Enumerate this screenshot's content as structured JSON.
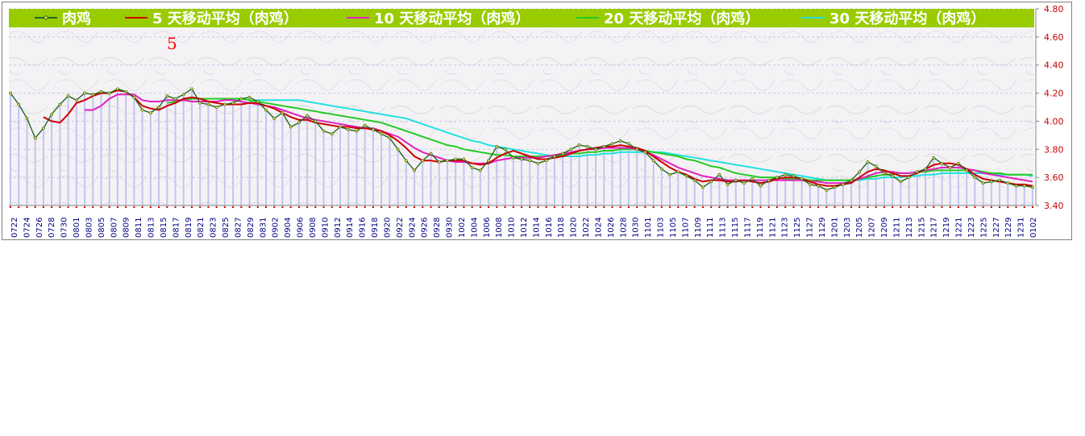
{
  "chart_data": {
    "type": "line",
    "title": "",
    "xlabel": "",
    "ylabel": "",
    "ylim": [
      3.4,
      4.8
    ],
    "y_ticks": [
      "4.80",
      "4.60",
      "4.40",
      "4.20",
      "4.00",
      "3.80",
      "3.60",
      "3.40"
    ],
    "annotation": "5",
    "x_tick_labels": [
      "0722",
      "0724",
      "0726",
      "0728",
      "0730",
      "0801",
      "0803",
      "0805",
      "0807",
      "0809",
      "0811",
      "0813",
      "0815",
      "0817",
      "0819",
      "0821",
      "0823",
      "0825",
      "0827",
      "0829",
      "0831",
      "0902",
      "0904",
      "0906",
      "0908",
      "0910",
      "0912",
      "0914",
      "0916",
      "0918",
      "0920",
      "0922",
      "0924",
      "0926",
      "0928",
      "0930",
      "1002",
      "1004",
      "1006",
      "1008",
      "1010",
      "1012",
      "1014",
      "1016",
      "1018",
      "1020",
      "1022",
      "1024",
      "1026",
      "1028",
      "1030",
      "1101",
      "1103",
      "1105",
      "1107",
      "1109",
      "1111",
      "1113",
      "1115",
      "1117",
      "1119",
      "1121",
      "1123",
      "1125",
      "1127",
      "1129",
      "1201",
      "1203",
      "1205",
      "1207",
      "1209",
      "1211",
      "1213",
      "1215",
      "1217",
      "1219",
      "1221",
      "1223",
      "1225",
      "1227",
      "1229",
      "1231",
      "0102"
    ],
    "grid": true,
    "legend_position": "top",
    "colors": {
      "legend_bg": "#99cc00",
      "legend_text": "#ffffff",
      "axis_text": "#cc0000",
      "bars": "#c4c4f4",
      "annotation": "#ff0000"
    },
    "series": [
      {
        "name": "肉鸡",
        "color": "#226622",
        "values": [
          4.2,
          4.12,
          4.02,
          3.88,
          3.95,
          4.05,
          4.12,
          4.18,
          4.15,
          4.2,
          4.19,
          4.21,
          4.2,
          4.23,
          4.21,
          4.17,
          4.08,
          4.06,
          4.1,
          4.18,
          4.16,
          4.19,
          4.23,
          4.13,
          4.12,
          4.1,
          4.12,
          4.13,
          4.16,
          4.17,
          4.14,
          4.08,
          4.02,
          4.06,
          3.96,
          3.99,
          4.04,
          4.0,
          3.93,
          3.91,
          3.96,
          3.94,
          3.93,
          3.97,
          3.94,
          3.91,
          3.88,
          3.8,
          3.72,
          3.65,
          3.72,
          3.77,
          3.71,
          3.72,
          3.73,
          3.73,
          3.67,
          3.65,
          3.72,
          3.82,
          3.8,
          3.74,
          3.73,
          3.72,
          3.7,
          3.72,
          3.75,
          3.77,
          3.8,
          3.83,
          3.82,
          3.8,
          3.82,
          3.84,
          3.86,
          3.84,
          3.8,
          3.78,
          3.72,
          3.66,
          3.62,
          3.64,
          3.61,
          3.58,
          3.53,
          3.57,
          3.62,
          3.55,
          3.58,
          3.56,
          3.59,
          3.54,
          3.58,
          3.6,
          3.62,
          3.61,
          3.59,
          3.55,
          3.54,
          3.51,
          3.53,
          3.55,
          3.58,
          3.64,
          3.71,
          3.68,
          3.63,
          3.61,
          3.57,
          3.6,
          3.64,
          3.66,
          3.74,
          3.7,
          3.67,
          3.7,
          3.65,
          3.6,
          3.56,
          3.57,
          3.58,
          3.56,
          3.54,
          3.54,
          3.53
        ]
      },
      {
        "name": "5 天移动平均（肉鸡）",
        "color": "#cc0000",
        "values": [
          null,
          null,
          null,
          null,
          4.03,
          4.0,
          3.99,
          4.05,
          4.13,
          4.15,
          4.18,
          4.2,
          4.2,
          4.22,
          4.21,
          4.17,
          4.11,
          4.09,
          4.08,
          4.11,
          4.13,
          4.16,
          4.17,
          4.16,
          4.14,
          4.13,
          4.12,
          4.12,
          4.12,
          4.13,
          4.13,
          4.11,
          4.09,
          4.06,
          4.03,
          4.01,
          4.01,
          3.99,
          3.98,
          3.97,
          3.96,
          3.96,
          3.95,
          3.95,
          3.94,
          3.93,
          3.9,
          3.86,
          3.81,
          3.75,
          3.72,
          3.72,
          3.71,
          3.72,
          3.72,
          3.72,
          3.7,
          3.69,
          3.7,
          3.74,
          3.77,
          3.79,
          3.77,
          3.75,
          3.73,
          3.73,
          3.74,
          3.75,
          3.77,
          3.79,
          3.8,
          3.81,
          3.82,
          3.82,
          3.83,
          3.82,
          3.81,
          3.79,
          3.75,
          3.71,
          3.67,
          3.64,
          3.62,
          3.59,
          3.57,
          3.58,
          3.58,
          3.57,
          3.57,
          3.58,
          3.57,
          3.56,
          3.57,
          3.59,
          3.6,
          3.6,
          3.59,
          3.57,
          3.55,
          3.54,
          3.54,
          3.55,
          3.56,
          3.6,
          3.64,
          3.66,
          3.65,
          3.63,
          3.61,
          3.61,
          3.63,
          3.66,
          3.69,
          3.7,
          3.7,
          3.69,
          3.66,
          3.62,
          3.59,
          3.58,
          3.57,
          3.56,
          3.55,
          3.55,
          3.54
        ]
      },
      {
        "name": "10 天移动平均（肉鸡）",
        "color": "#e020c0",
        "values": [
          null,
          null,
          null,
          null,
          null,
          null,
          null,
          null,
          null,
          4.08,
          4.08,
          4.11,
          4.16,
          4.19,
          4.19,
          4.19,
          4.15,
          4.14,
          4.14,
          4.15,
          4.15,
          4.15,
          4.14,
          4.14,
          4.14,
          4.14,
          4.15,
          4.15,
          4.14,
          4.13,
          4.12,
          4.11,
          4.1,
          4.08,
          4.06,
          4.04,
          4.02,
          4.01,
          4.0,
          3.99,
          3.98,
          3.97,
          3.96,
          3.95,
          3.95,
          3.93,
          3.91,
          3.89,
          3.85,
          3.81,
          3.78,
          3.76,
          3.74,
          3.72,
          3.71,
          3.71,
          3.7,
          3.7,
          3.7,
          3.72,
          3.73,
          3.74,
          3.74,
          3.74,
          3.74,
          3.75,
          3.76,
          3.77,
          3.78,
          3.79,
          3.8,
          3.8,
          3.81,
          3.81,
          3.81,
          3.81,
          3.8,
          3.78,
          3.76,
          3.73,
          3.7,
          3.67,
          3.65,
          3.63,
          3.61,
          3.6,
          3.59,
          3.58,
          3.58,
          3.58,
          3.58,
          3.58,
          3.58,
          3.58,
          3.58,
          3.58,
          3.58,
          3.57,
          3.57,
          3.56,
          3.56,
          3.56,
          3.57,
          3.59,
          3.61,
          3.63,
          3.64,
          3.64,
          3.63,
          3.63,
          3.64,
          3.65,
          3.66,
          3.67,
          3.67,
          3.67,
          3.66,
          3.65,
          3.63,
          3.62,
          3.61,
          3.6,
          3.59,
          3.58,
          3.57
        ]
      },
      {
        "name": "20 天移动平均（肉鸡）",
        "color": "#22cc22",
        "values": [
          null,
          null,
          null,
          null,
          null,
          null,
          null,
          null,
          null,
          null,
          null,
          null,
          null,
          null,
          null,
          null,
          null,
          null,
          null,
          4.13,
          4.14,
          4.15,
          4.16,
          4.16,
          4.16,
          4.16,
          4.16,
          4.16,
          4.16,
          4.15,
          4.14,
          4.13,
          4.12,
          4.11,
          4.1,
          4.09,
          4.08,
          4.07,
          4.06,
          4.05,
          4.04,
          4.03,
          4.02,
          4.01,
          4.0,
          3.99,
          3.97,
          3.95,
          3.93,
          3.91,
          3.89,
          3.87,
          3.85,
          3.83,
          3.82,
          3.8,
          3.79,
          3.78,
          3.77,
          3.76,
          3.76,
          3.75,
          3.75,
          3.75,
          3.75,
          3.75,
          3.75,
          3.76,
          3.77,
          3.77,
          3.78,
          3.78,
          3.79,
          3.79,
          3.8,
          3.8,
          3.8,
          3.79,
          3.78,
          3.77,
          3.76,
          3.75,
          3.73,
          3.72,
          3.7,
          3.68,
          3.67,
          3.65,
          3.63,
          3.62,
          3.61,
          3.6,
          3.6,
          3.6,
          3.59,
          3.59,
          3.59,
          3.58,
          3.58,
          3.58,
          3.58,
          3.58,
          3.58,
          3.59,
          3.6,
          3.61,
          3.62,
          3.62,
          3.63,
          3.63,
          3.64,
          3.64,
          3.65,
          3.65,
          3.65,
          3.65,
          3.65,
          3.65,
          3.64,
          3.63,
          3.63,
          3.62,
          3.62,
          3.62,
          3.62
        ]
      },
      {
        "name": "30 天移动平均（肉鸡）",
        "color": "#22e0e0",
        "values": [
          null,
          null,
          null,
          null,
          null,
          null,
          null,
          null,
          null,
          null,
          null,
          null,
          null,
          null,
          null,
          null,
          null,
          null,
          null,
          null,
          null,
          null,
          null,
          null,
          null,
          null,
          null,
          null,
          null,
          4.14,
          4.15,
          4.15,
          4.15,
          4.15,
          4.15,
          4.15,
          4.14,
          4.13,
          4.12,
          4.11,
          4.1,
          4.09,
          4.08,
          4.07,
          4.06,
          4.05,
          4.04,
          4.03,
          4.02,
          4.0,
          3.98,
          3.96,
          3.94,
          3.92,
          3.9,
          3.88,
          3.86,
          3.85,
          3.83,
          3.82,
          3.81,
          3.8,
          3.79,
          3.78,
          3.77,
          3.76,
          3.75,
          3.75,
          3.75,
          3.75,
          3.76,
          3.76,
          3.77,
          3.77,
          3.78,
          3.78,
          3.78,
          3.78,
          3.78,
          3.78,
          3.77,
          3.76,
          3.75,
          3.74,
          3.73,
          3.72,
          3.71,
          3.7,
          3.69,
          3.68,
          3.67,
          3.66,
          3.65,
          3.64,
          3.63,
          3.62,
          3.61,
          3.6,
          3.59,
          3.58,
          3.58,
          3.58,
          3.58,
          3.58,
          3.59,
          3.59,
          3.6,
          3.6,
          3.6,
          3.61,
          3.61,
          3.62,
          3.62,
          3.63,
          3.63,
          3.63,
          3.63,
          3.63,
          3.63,
          3.63,
          3.62,
          3.62,
          3.62,
          3.62,
          3.61
        ]
      }
    ]
  }
}
